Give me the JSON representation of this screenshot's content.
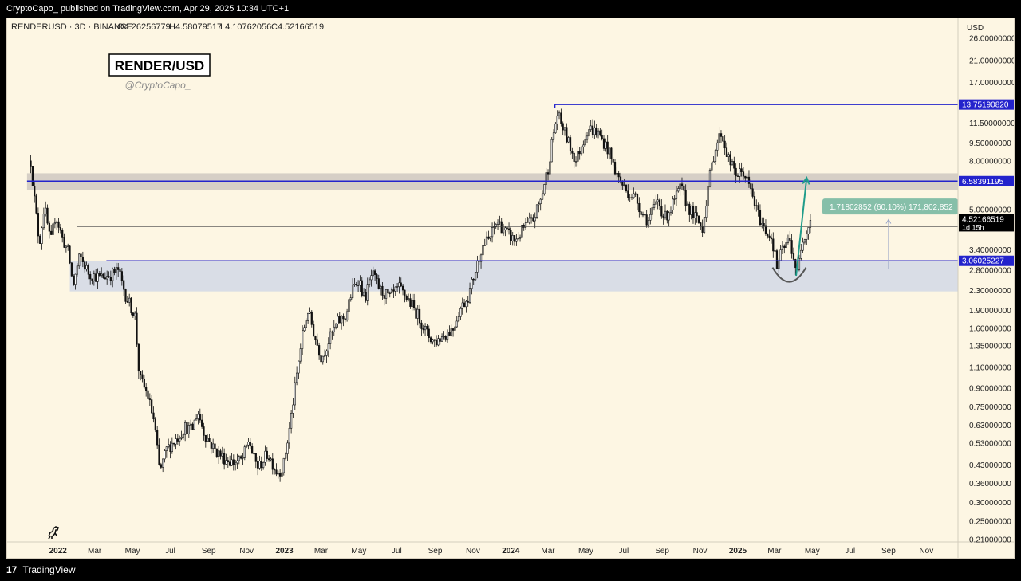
{
  "header": {
    "published": "CryptoCapo_ published on TradingView.com, Apr 29, 2025 10:34 UTC+1"
  },
  "legend": {
    "symbol": "RENDERUSD · 3D · BINANCE",
    "open": "O4.26256779",
    "high": "H4.58079517",
    "low": "L4.10762056",
    "close": "C4.52166519"
  },
  "watermark": {
    "title": "RENDER/USD",
    "author": "@CryptoCapo_"
  },
  "footer": {
    "brand": "TradingView",
    "logo_text": "17"
  },
  "chart_data": {
    "type": "candlestick",
    "currency": "USD",
    "y_scale": "log",
    "ylim": [
      0.205,
      31.5
    ],
    "y_ticks": [
      {
        "v": 26.0,
        "label": "26.00000000"
      },
      {
        "v": 21.0,
        "label": "21.00000000"
      },
      {
        "v": 17.0,
        "label": "17.00000000"
      },
      {
        "v": 11.5,
        "label": "11.50000000"
      },
      {
        "v": 9.5,
        "label": "9.50000000"
      },
      {
        "v": 8.0,
        "label": "8.00000000"
      },
      {
        "v": 5.0,
        "label": "5.00000000"
      },
      {
        "v": 3.4,
        "label": "3.40000000"
      },
      {
        "v": 2.8,
        "label": "2.80000000"
      },
      {
        "v": 2.3,
        "label": "2.30000000"
      },
      {
        "v": 1.9,
        "label": "1.90000000"
      },
      {
        "v": 1.6,
        "label": "1.60000000"
      },
      {
        "v": 1.35,
        "label": "1.35000000"
      },
      {
        "v": 1.1,
        "label": "1.10000000"
      },
      {
        "v": 0.9,
        "label": "0.90000000"
      },
      {
        "v": 0.75,
        "label": "0.75000000"
      },
      {
        "v": 0.63,
        "label": "0.63000000"
      },
      {
        "v": 0.53,
        "label": "0.53000000"
      },
      {
        "v": 0.43,
        "label": "0.43000000"
      },
      {
        "v": 0.36,
        "label": "0.36000000"
      },
      {
        "v": 0.3,
        "label": "0.30000000"
      },
      {
        "v": 0.25,
        "label": "0.25000000"
      },
      {
        "v": 0.21,
        "label": "0.21000000"
      }
    ],
    "x_ticks": [
      {
        "d": "2022-01-01",
        "label": "2022",
        "bold": true
      },
      {
        "d": "2022-03-01",
        "label": "Mar"
      },
      {
        "d": "2022-05-01",
        "label": "May"
      },
      {
        "d": "2022-07-01",
        "label": "Jul"
      },
      {
        "d": "2022-09-01",
        "label": "Sep"
      },
      {
        "d": "2022-11-01",
        "label": "Nov"
      },
      {
        "d": "2023-01-01",
        "label": "2023",
        "bold": true
      },
      {
        "d": "2023-03-01",
        "label": "Mar"
      },
      {
        "d": "2023-05-01",
        "label": "May"
      },
      {
        "d": "2023-07-01",
        "label": "Jul"
      },
      {
        "d": "2023-09-01",
        "label": "Sep"
      },
      {
        "d": "2023-11-01",
        "label": "Nov"
      },
      {
        "d": "2024-01-01",
        "label": "2024",
        "bold": true
      },
      {
        "d": "2024-03-01",
        "label": "Mar"
      },
      {
        "d": "2024-05-01",
        "label": "May"
      },
      {
        "d": "2024-07-01",
        "label": "Jul"
      },
      {
        "d": "2024-09-01",
        "label": "Sep"
      },
      {
        "d": "2024-11-01",
        "label": "Nov"
      },
      {
        "d": "2025-01-01",
        "label": "2025",
        "bold": true
      },
      {
        "d": "2025-03-01",
        "label": "Mar"
      },
      {
        "d": "2025-05-01",
        "label": "May"
      },
      {
        "d": "2025-07-01",
        "label": "Jul"
      },
      {
        "d": "2025-09-01",
        "label": "Sep"
      },
      {
        "d": "2025-11-01",
        "label": "Nov"
      }
    ],
    "xlim": [
      "2021-10-11",
      "2025-12-22"
    ],
    "price_path": [
      [
        "2021-11-18",
        8.0
      ],
      [
        "2021-11-25",
        5.2
      ],
      [
        "2021-12-02",
        3.6
      ],
      [
        "2021-12-10",
        5.2
      ],
      [
        "2021-12-20",
        3.6
      ],
      [
        "2021-12-28",
        4.8
      ],
      [
        "2022-01-08",
        3.8
      ],
      [
        "2022-01-18",
        3.3
      ],
      [
        "2022-01-25",
        2.4
      ],
      [
        "2022-02-05",
        3.2
      ],
      [
        "2022-02-20",
        2.7
      ],
      [
        "2022-03-10",
        2.6
      ],
      [
        "2022-03-30",
        2.7
      ],
      [
        "2022-04-08",
        2.8
      ],
      [
        "2022-04-20",
        2.2
      ],
      [
        "2022-05-05",
        1.8
      ],
      [
        "2022-05-12",
        1.0
      ],
      [
        "2022-05-25",
        0.85
      ],
      [
        "2022-06-05",
        0.65
      ],
      [
        "2022-06-14",
        0.4
      ],
      [
        "2022-06-25",
        0.5
      ],
      [
        "2022-07-10",
        0.55
      ],
      [
        "2022-07-25",
        0.62
      ],
      [
        "2022-08-05",
        0.6
      ],
      [
        "2022-08-14",
        0.72
      ],
      [
        "2022-08-25",
        0.58
      ],
      [
        "2022-09-10",
        0.5
      ],
      [
        "2022-09-25",
        0.46
      ],
      [
        "2022-10-10",
        0.44
      ],
      [
        "2022-10-25",
        0.45
      ],
      [
        "2022-11-05",
        0.55
      ],
      [
        "2022-11-12",
        0.46
      ],
      [
        "2022-11-20",
        0.42
      ],
      [
        "2022-12-05",
        0.48
      ],
      [
        "2022-12-20",
        0.4
      ],
      [
        "2022-12-30",
        0.42
      ],
      [
        "2023-01-08",
        0.58
      ],
      [
        "2023-01-18",
        0.9
      ],
      [
        "2023-01-30",
        1.5
      ],
      [
        "2023-02-08",
        1.9
      ],
      [
        "2023-02-20",
        1.45
      ],
      [
        "2023-03-02",
        1.2
      ],
      [
        "2023-03-15",
        1.45
      ],
      [
        "2023-03-28",
        1.7
      ],
      [
        "2023-04-10",
        1.8
      ],
      [
        "2023-04-20",
        2.3
      ],
      [
        "2023-05-01",
        2.6
      ],
      [
        "2023-05-10",
        2.1
      ],
      [
        "2023-05-22",
        2.7
      ],
      [
        "2023-06-05",
        2.3
      ],
      [
        "2023-06-20",
        2.15
      ],
      [
        "2023-07-05",
        2.35
      ],
      [
        "2023-07-20",
        2.1
      ],
      [
        "2023-08-05",
        1.8
      ],
      [
        "2023-08-20",
        1.5
      ],
      [
        "2023-09-01",
        1.4
      ],
      [
        "2023-09-15",
        1.5
      ],
      [
        "2023-09-30",
        1.6
      ],
      [
        "2023-10-10",
        1.9
      ],
      [
        "2023-10-25",
        2.2
      ],
      [
        "2023-11-05",
        2.8
      ],
      [
        "2023-11-15",
        3.5
      ],
      [
        "2023-11-28",
        3.8
      ],
      [
        "2023-12-10",
        4.5
      ],
      [
        "2023-12-25",
        4.0
      ],
      [
        "2024-01-08",
        3.7
      ],
      [
        "2024-01-22",
        4.2
      ],
      [
        "2024-02-05",
        4.5
      ],
      [
        "2024-02-18",
        5.5
      ],
      [
        "2024-03-01",
        7.5
      ],
      [
        "2024-03-10",
        10.5
      ],
      [
        "2024-03-16",
        12.5
      ],
      [
        "2024-03-25",
        11.0
      ],
      [
        "2024-04-05",
        9.2
      ],
      [
        "2024-04-15",
        8.0
      ],
      [
        "2024-04-25",
        9.5
      ],
      [
        "2024-05-05",
        11.0
      ],
      [
        "2024-05-20",
        10.5
      ],
      [
        "2024-06-05",
        9.0
      ],
      [
        "2024-06-20",
        7.0
      ],
      [
        "2024-07-05",
        6.0
      ],
      [
        "2024-07-20",
        5.6
      ],
      [
        "2024-08-01",
        4.8
      ],
      [
        "2024-08-10",
        4.5
      ],
      [
        "2024-08-25",
        5.5
      ],
      [
        "2024-09-05",
        4.6
      ],
      [
        "2024-09-20",
        5.4
      ],
      [
        "2024-10-01",
        6.2
      ],
      [
        "2024-10-12",
        5.2
      ],
      [
        "2024-10-25",
        4.6
      ],
      [
        "2024-11-05",
        4.2
      ],
      [
        "2024-11-15",
        6.5
      ],
      [
        "2024-11-25",
        9.0
      ],
      [
        "2024-12-05",
        10.5
      ],
      [
        "2024-12-18",
        8.0
      ],
      [
        "2024-12-30",
        7.0
      ],
      [
        "2025-01-10",
        7.2
      ],
      [
        "2025-01-22",
        6.0
      ],
      [
        "2025-02-01",
        4.9
      ],
      [
        "2025-02-12",
        4.2
      ],
      [
        "2025-02-25",
        3.8
      ],
      [
        "2025-03-05",
        2.9
      ],
      [
        "2025-03-12",
        3.3
      ],
      [
        "2025-03-25",
        3.8
      ],
      [
        "2025-04-07",
        2.7
      ],
      [
        "2025-04-15",
        3.8
      ],
      [
        "2025-04-22",
        4.1
      ],
      [
        "2025-04-29",
        4.52
      ]
    ],
    "lines": {
      "resistance_top": {
        "value": 13.7519082,
        "label": "13.75190820",
        "start": "2024-03-12"
      },
      "resistance_mid": {
        "value": 6.58391195,
        "label": "6.58391195",
        "start": "2021-11-12"
      },
      "support": {
        "value": 3.06025227,
        "label": "3.06025227",
        "start": "2022-03-20"
      },
      "reference": {
        "value": 4.2605665,
        "label": "4.26056650",
        "start": "2022-02-01"
      }
    },
    "zones": [
      {
        "from": 6.05,
        "to": 7.1,
        "start": "2021-11-12",
        "color": "#d6cfc6"
      },
      {
        "from": 2.28,
        "to": 3.06,
        "start": "2022-01-20",
        "color": "#d9dde6"
      }
    ],
    "last_price": {
      "value": 4.52166519,
      "label": "4.52166519",
      "countdown": "1d 15h"
    },
    "measure": {
      "label": "1.71802852 (60.10%) 171,802,852",
      "from": 2.83,
      "to": 4.55,
      "date": "2025-09-01"
    },
    "arrow": {
      "from": [
        "2025-04-05",
        2.65
      ],
      "to": [
        "2025-04-22",
        6.8
      ],
      "color": "#1f9c8a"
    },
    "colors": {
      "background": "#fdf6e3",
      "line": "#2323cc",
      "price": "#000000",
      "reference": "#444444"
    }
  }
}
